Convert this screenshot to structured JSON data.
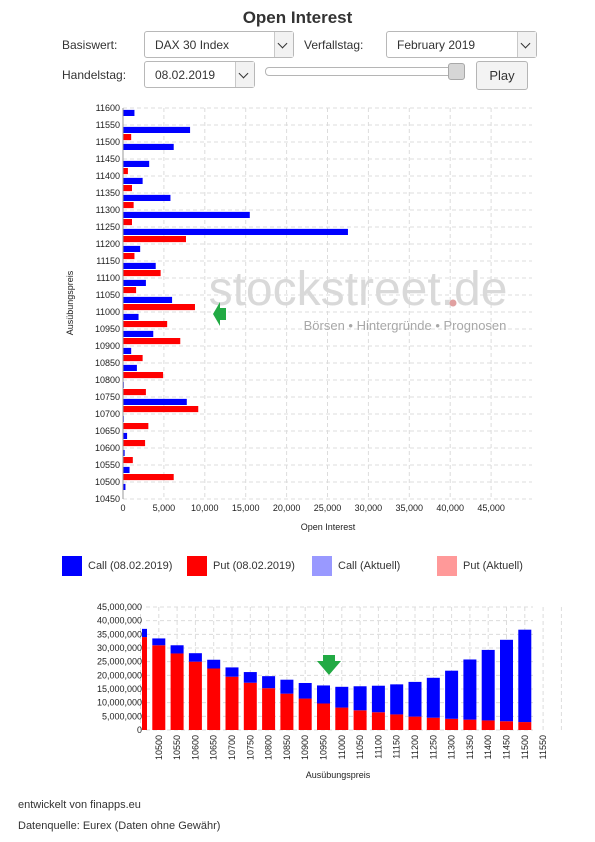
{
  "page": {
    "title": "Open Interest"
  },
  "controls": {
    "basiswert_label": "Basiswert:",
    "basiswert_value": "DAX 30 Index",
    "verfallstag_label": "Verfallstag:",
    "verfallstag_value": "February 2019",
    "handelstag_label": "Handelstag:",
    "handelstag_value": "08.02.2019",
    "play_label": "Play",
    "slider_position": 1.0
  },
  "watermark": {
    "brand": "stockstreet.de",
    "tagline": "Börsen • Hintergründe • Prognosen"
  },
  "legend": [
    {
      "label": "Call (08.02.2019)",
      "color": "#0000ff"
    },
    {
      "label": "Put (08.02.2019)",
      "color": "#ff0000"
    },
    {
      "label": "Call (Aktuell)",
      "color": "#9999ff"
    },
    {
      "label": "Put (Aktuell)",
      "color": "#ff9999"
    }
  ],
  "footer": {
    "line1": "entwickelt von finapps.eu",
    "line2": "Datenquelle: Eurex (Daten ohne Gewähr)"
  },
  "chart_data": [
    {
      "type": "bar",
      "orientation": "horizontal",
      "title": "",
      "xlabel": "Open Interest",
      "ylabel": "Ausübungspreis",
      "xlim": [
        0,
        50000
      ],
      "xticks": [
        "0",
        "5,000",
        "10,000",
        "15,000",
        "20,000",
        "25,000",
        "30,000",
        "35,000",
        "40,000",
        "45,000"
      ],
      "ylim": [
        10450,
        11600
      ],
      "yticks": [
        "10450",
        "10500",
        "10550",
        "10600",
        "10650",
        "10700",
        "10750",
        "10800",
        "10850",
        "10900",
        "10950",
        "11000",
        "11050",
        "11100",
        "11150",
        "11200",
        "11250",
        "11300",
        "11350",
        "11400",
        "11450",
        "11500",
        "11550",
        "11600"
      ],
      "grid": true,
      "categories": [
        10450,
        10500,
        10550,
        10600,
        10650,
        10700,
        10750,
        10800,
        10850,
        10900,
        10950,
        11000,
        11050,
        11100,
        11150,
        11200,
        11250,
        11300,
        11350,
        11400,
        11450,
        11500,
        11550
      ],
      "series": [
        {
          "name": "Call (08.02.2019)",
          "color": "#0000ff",
          "values": [
            300,
            800,
            200,
            500,
            100,
            7800,
            100,
            1700,
            1000,
            3700,
            1900,
            6000,
            2800,
            4000,
            2100,
            27500,
            15500,
            5800,
            2400,
            3200,
            6200,
            8200,
            1400
          ]
        },
        {
          "name": "Put (08.02.2019)",
          "color": "#ff0000",
          "values": [
            50,
            6200,
            1200,
            2700,
            3100,
            9200,
            2800,
            4900,
            2400,
            7000,
            5400,
            8800,
            1600,
            4600,
            1400,
            7700,
            1100,
            1300,
            1100,
            600,
            0,
            1000,
            0
          ]
        }
      ],
      "annotation": {
        "type": "arrow",
        "at_category": 11000,
        "color": "#22aa44"
      }
    },
    {
      "type": "bar",
      "stacked": true,
      "title": "",
      "xlabel": "Ausübungspreis",
      "ylabel": "",
      "ylim": [
        0,
        45000000
      ],
      "yticks": [
        "0",
        "5,000,000",
        "10,000,000",
        "15,000,000",
        "20,000,000",
        "25,000,000",
        "30,000,000",
        "35,000,000",
        "40,000,000",
        "45,000,000"
      ],
      "categories": [
        10450,
        10500,
        10550,
        10600,
        10650,
        10700,
        10750,
        10800,
        10850,
        10900,
        10950,
        11000,
        11050,
        11100,
        11150,
        11200,
        11250,
        11300,
        11350,
        11400,
        11450,
        11500,
        11550,
        11600
      ],
      "visible_tick_labels": [
        "10500",
        "10550",
        "10600",
        "10650",
        "10700",
        "10750",
        "10800",
        "10850",
        "10900",
        "10950",
        "11000",
        "11050",
        "11100",
        "11150",
        "11200",
        "11250",
        "11300",
        "11350",
        "11400",
        "11450",
        "11500",
        "11550"
      ],
      "grid": true,
      "series": [
        {
          "name": "Put",
          "color": "#ff0000",
          "values": [
            34000000,
            31000000,
            28000000,
            25000000,
            22500000,
            19500000,
            17300000,
            15300000,
            13300000,
            11500000,
            9700000,
            8200000,
            7200000,
            6500000,
            5700000,
            4900000,
            4500000,
            4100000,
            3800000,
            3500000,
            3200000,
            2900000,
            2600000,
            2400000
          ]
        },
        {
          "name": "Call",
          "color": "#0000ff",
          "values": [
            3000000,
            2500000,
            3000000,
            3100000,
            3200000,
            3400000,
            3900000,
            4400000,
            5100000,
            5700000,
            6600000,
            7600000,
            8800000,
            9700000,
            11000000,
            12700000,
            14600000,
            17600000,
            22000000,
            25800000,
            29800000,
            33800000,
            38500000,
            43300000
          ]
        }
      ],
      "annotation": {
        "type": "arrow",
        "at_category": 11000,
        "color": "#22aa44"
      }
    }
  ]
}
